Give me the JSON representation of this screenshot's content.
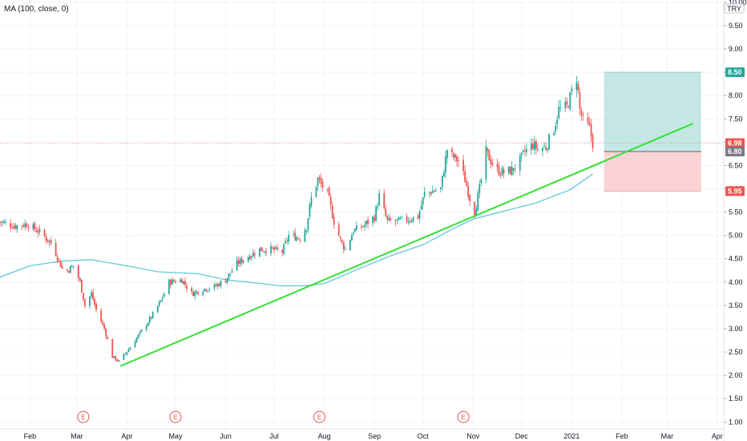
{
  "indicator_legend": "MA (100, close, 0)",
  "currency": "TRY",
  "colors": {
    "up": "#26a69a",
    "down": "#ef5350",
    "ma": "#63c6d8",
    "trendline": "#33e033",
    "target_zone": "#b2dfdb",
    "stop_zone": "#fccbcd",
    "current_price_badge": "#ef5350",
    "target_badge": "#26a69a",
    "stop_badge": "#ef5350",
    "entry_badge": "#787b86",
    "earnings_marker": "#e0524c"
  },
  "earnings_markers": [
    {
      "label": "E",
      "x": "2020-03-05"
    },
    {
      "label": "E",
      "x": "2020-05-01"
    },
    {
      "label": "E",
      "x": "2020-07-29"
    },
    {
      "label": "E",
      "x": "2020-10-26"
    }
  ],
  "price_badges": [
    {
      "label": "8.50",
      "kind": "target"
    },
    {
      "label": "6.98",
      "kind": "current"
    },
    {
      "label": "6.80",
      "kind": "entry"
    },
    {
      "label": "5.95",
      "kind": "stop"
    }
  ],
  "chart_data": {
    "type": "candlestick",
    "title": "",
    "xlabel": "",
    "ylabel": "",
    "ylim": [
      0.85,
      10.05
    ],
    "xlim": [
      "2020-01-13",
      "2021-04-05"
    ],
    "y_ticks": [
      "1.00",
      "1.50",
      "2.00",
      "2.50",
      "3.00",
      "3.50",
      "4.00",
      "4.50",
      "5.00",
      "5.50",
      "6.00",
      "6.50",
      "7.00",
      "7.50",
      "8.00",
      "8.50",
      "9.00",
      "9.50",
      "10.00"
    ],
    "x_ticks": [
      {
        "label": "Feb",
        "x": "2020-02-01"
      },
      {
        "label": "Mar",
        "x": "2020-03-01"
      },
      {
        "label": "Apr",
        "x": "2020-04-01"
      },
      {
        "label": "May",
        "x": "2020-05-01"
      },
      {
        "label": "Jun",
        "x": "2020-06-01"
      },
      {
        "label": "Jul",
        "x": "2020-07-01"
      },
      {
        "label": "Aug",
        "x": "2020-08-01"
      },
      {
        "label": "Sep",
        "x": "2020-09-01"
      },
      {
        "label": "Oct",
        "x": "2020-10-01"
      },
      {
        "label": "Nov",
        "x": "2020-11-01"
      },
      {
        "label": "Dec",
        "x": "2020-12-01"
      },
      {
        "label": "2021",
        "x": "2021-01-01"
      },
      {
        "label": "Feb",
        "x": "2021-02-01"
      },
      {
        "label": "Mar",
        "x": "2021-03-01"
      },
      {
        "label": "Apr",
        "x": "2021-04-01"
      }
    ],
    "price_waypoints": [
      [
        "2020-01-13",
        5.3
      ],
      [
        "2020-01-23",
        5.2
      ],
      [
        "2020-01-30",
        5.25
      ],
      [
        "2020-02-08",
        5.05
      ],
      [
        "2020-02-15",
        4.8
      ],
      [
        "2020-02-22",
        4.2
      ],
      [
        "2020-02-28",
        4.35
      ],
      [
        "2020-03-03",
        4.0
      ],
      [
        "2020-03-06",
        3.5
      ],
      [
        "2020-03-10",
        3.75
      ],
      [
        "2020-03-13",
        3.4
      ],
      [
        "2020-03-18",
        3.0
      ],
      [
        "2020-03-23",
        2.4
      ],
      [
        "2020-03-27",
        2.3
      ],
      [
        "2020-04-03",
        2.6
      ],
      [
        "2020-04-10",
        2.95
      ],
      [
        "2020-04-17",
        3.3
      ],
      [
        "2020-04-22",
        3.6
      ],
      [
        "2020-04-27",
        4.0
      ],
      [
        "2020-05-05",
        4.05
      ],
      [
        "2020-05-11",
        3.75
      ],
      [
        "2020-05-18",
        3.85
      ],
      [
        "2020-05-25",
        3.9
      ],
      [
        "2020-06-01",
        4.05
      ],
      [
        "2020-06-08",
        4.4
      ],
      [
        "2020-06-15",
        4.55
      ],
      [
        "2020-06-22",
        4.7
      ],
      [
        "2020-06-29",
        4.7
      ],
      [
        "2020-07-06",
        4.65
      ],
      [
        "2020-07-10",
        5.0
      ],
      [
        "2020-07-17",
        4.95
      ],
      [
        "2020-07-21",
        5.2
      ],
      [
        "2020-07-24",
        5.8
      ],
      [
        "2020-07-28",
        6.2
      ],
      [
        "2020-08-03",
        5.9
      ],
      [
        "2020-08-07",
        5.3
      ],
      [
        "2020-08-11",
        4.9
      ],
      [
        "2020-08-14",
        4.7
      ],
      [
        "2020-08-19",
        5.1
      ],
      [
        "2020-08-25",
        5.2
      ],
      [
        "2020-09-01",
        5.4
      ],
      [
        "2020-09-04",
        5.85
      ],
      [
        "2020-09-09",
        5.3
      ],
      [
        "2020-09-15",
        5.3
      ],
      [
        "2020-09-22",
        5.35
      ],
      [
        "2020-09-28",
        5.4
      ],
      [
        "2020-10-02",
        5.9
      ],
      [
        "2020-10-07",
        5.95
      ],
      [
        "2020-10-12",
        6.0
      ],
      [
        "2020-10-16",
        6.85
      ],
      [
        "2020-10-19",
        6.7
      ],
      [
        "2020-10-23",
        6.6
      ],
      [
        "2020-10-27",
        6.2
      ],
      [
        "2020-10-30",
        5.8
      ],
      [
        "2020-11-02",
        5.5
      ],
      [
        "2020-11-05",
        6.0
      ],
      [
        "2020-11-09",
        6.8
      ],
      [
        "2020-11-12",
        6.6
      ],
      [
        "2020-11-16",
        6.4
      ],
      [
        "2020-11-20",
        6.35
      ],
      [
        "2020-11-25",
        6.4
      ],
      [
        "2020-11-30",
        6.6
      ],
      [
        "2020-12-03",
        6.8
      ],
      [
        "2020-12-08",
        6.95
      ],
      [
        "2020-12-11",
        6.85
      ],
      [
        "2020-12-16",
        6.9
      ],
      [
        "2020-12-21",
        7.3
      ],
      [
        "2020-12-24",
        7.7
      ],
      [
        "2020-12-29",
        7.75
      ],
      [
        "2021-01-04",
        8.4
      ],
      [
        "2021-01-06",
        7.7
      ],
      [
        "2021-01-08",
        7.45
      ],
      [
        "2021-01-12",
        7.3
      ],
      [
        "2021-01-14",
        6.98
      ]
    ],
    "series": [
      {
        "name": "MA (100, close, 0)",
        "type": "line",
        "points": [
          [
            "2020-01-13",
            4.1
          ],
          [
            "2020-02-01",
            4.35
          ],
          [
            "2020-02-20",
            4.45
          ],
          [
            "2020-03-10",
            4.48
          ],
          [
            "2020-04-01",
            4.35
          ],
          [
            "2020-04-20",
            4.22
          ],
          [
            "2020-05-15",
            4.18
          ],
          [
            "2020-06-01",
            4.05
          ],
          [
            "2020-06-20",
            3.98
          ],
          [
            "2020-07-05",
            3.92
          ],
          [
            "2020-07-20",
            3.92
          ],
          [
            "2020-08-01",
            3.97
          ],
          [
            "2020-08-20",
            4.25
          ],
          [
            "2020-09-10",
            4.55
          ],
          [
            "2020-10-01",
            4.8
          ],
          [
            "2020-10-20",
            5.15
          ],
          [
            "2020-11-01",
            5.35
          ],
          [
            "2020-11-20",
            5.52
          ],
          [
            "2020-12-10",
            5.7
          ],
          [
            "2020-12-31",
            5.98
          ],
          [
            "2021-01-14",
            6.32
          ]
        ]
      }
    ],
    "trendline": {
      "from": [
        "2020-03-28",
        2.2
      ],
      "to": [
        "2021-03-17",
        7.4
      ]
    },
    "long_position": {
      "start": "2021-01-21",
      "end": "2021-03-22",
      "entry": 6.8,
      "target": 8.5,
      "stop": 5.95
    },
    "current_price": 6.98
  }
}
